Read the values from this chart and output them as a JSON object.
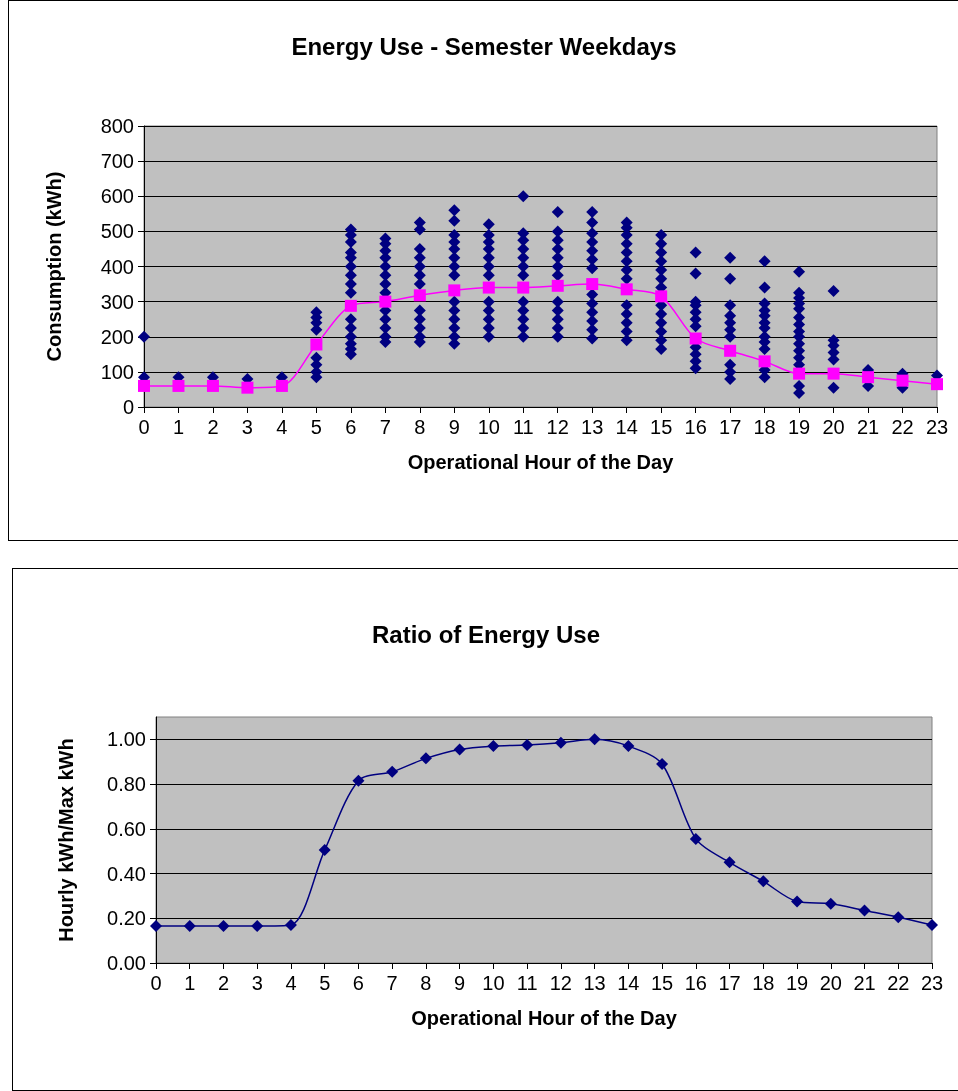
{
  "chart_data": [
    {
      "type": "scatter",
      "title": "Energy Use - Semester Weekdays",
      "xlabel": "Operational Hour of the Day",
      "ylabel": "Consumption (kWh)",
      "xlim": [
        0,
        23
      ],
      "xticks": [
        0,
        1,
        2,
        3,
        4,
        5,
        6,
        7,
        8,
        9,
        10,
        11,
        12,
        13,
        14,
        15,
        16,
        17,
        18,
        19,
        20,
        21,
        22,
        23
      ],
      "ylim": [
        0,
        800
      ],
      "yticks": [
        0,
        100,
        200,
        300,
        400,
        500,
        600,
        700,
        800
      ],
      "grid": "y",
      "series": [
        {
          "color": "#000080",
          "marker": "diamond",
          "x": [
            0,
            0,
            1,
            2,
            3,
            4,
            5,
            5,
            5,
            5,
            5,
            5,
            5,
            5,
            6,
            6,
            6,
            6,
            6,
            6,
            6,
            6,
            6,
            6,
            6,
            6,
            6,
            6,
            6,
            7,
            7,
            7,
            7,
            7,
            7,
            7,
            7,
            7,
            7,
            7,
            7,
            7,
            8,
            8,
            8,
            8,
            8,
            8,
            8,
            8,
            8,
            8,
            8,
            8,
            9,
            9,
            9,
            9,
            9,
            9,
            9,
            9,
            9,
            9,
            9,
            9,
            9,
            9,
            10,
            10,
            10,
            10,
            10,
            10,
            10,
            10,
            10,
            10,
            10,
            10,
            11,
            11,
            11,
            11,
            11,
            11,
            11,
            11,
            11,
            11,
            11,
            11,
            12,
            12,
            12,
            12,
            12,
            12,
            12,
            12,
            12,
            12,
            12,
            12,
            13,
            13,
            13,
            13,
            13,
            13,
            13,
            13,
            13,
            13,
            13,
            13,
            13,
            14,
            14,
            14,
            14,
            14,
            14,
            14,
            14,
            14,
            14,
            14,
            14,
            14,
            15,
            15,
            15,
            15,
            15,
            15,
            15,
            15,
            15,
            15,
            15,
            15,
            15,
            16,
            16,
            16,
            16,
            16,
            16,
            16,
            16,
            16,
            16,
            16,
            17,
            17,
            17,
            17,
            17,
            17,
            17,
            17,
            17,
            17,
            18,
            18,
            18,
            18,
            18,
            18,
            18,
            18,
            18,
            18,
            18,
            18,
            19,
            19,
            19,
            19,
            19,
            19,
            19,
            19,
            19,
            19,
            19,
            19,
            19,
            19,
            19,
            20,
            20,
            20,
            20,
            20,
            20,
            21,
            21,
            22,
            22,
            23
          ],
          "values": [
            85,
            200,
            85,
            85,
            80,
            85,
            85,
            100,
            120,
            140,
            220,
            240,
            255,
            270,
            150,
            165,
            180,
            200,
            225,
            250,
            325,
            350,
            375,
            400,
            425,
            440,
            470,
            490,
            505,
            185,
            200,
            225,
            250,
            275,
            325,
            350,
            375,
            400,
            425,
            445,
            465,
            480,
            185,
            200,
            225,
            250,
            275,
            350,
            375,
            400,
            425,
            450,
            505,
            525,
            180,
            200,
            225,
            250,
            275,
            300,
            375,
            400,
            425,
            450,
            470,
            490,
            530,
            560,
            200,
            225,
            250,
            275,
            300,
            375,
            400,
            425,
            450,
            470,
            490,
            520,
            200,
            225,
            250,
            275,
            300,
            375,
            400,
            425,
            450,
            475,
            495,
            600,
            200,
            225,
            250,
            275,
            300,
            375,
            400,
            425,
            450,
            475,
            500,
            555,
            195,
            220,
            245,
            270,
            295,
            320,
            395,
            420,
            445,
            470,
            495,
            525,
            555,
            190,
            215,
            240,
            265,
            290,
            365,
            390,
            415,
            440,
            465,
            490,
            510,
            525,
            165,
            190,
            215,
            240,
            265,
            290,
            340,
            365,
            390,
            415,
            440,
            465,
            490,
            110,
            130,
            150,
            170,
            230,
            250,
            270,
            290,
            300,
            380,
            440,
            80,
            100,
            120,
            200,
            220,
            240,
            260,
            290,
            365,
            425,
            85,
            105,
            165,
            185,
            200,
            225,
            240,
            260,
            275,
            295,
            340,
            415,
            40,
            60,
            120,
            140,
            160,
            180,
            200,
            215,
            235,
            255,
            280,
            295,
            310,
            325,
            385,
            55,
            135,
            155,
            175,
            190,
            330,
            60,
            105,
            55,
            95,
            90
          ]
        },
        {
          "type": "line",
          "color": "#ff00ff",
          "marker": "square",
          "x": [
            0,
            1,
            2,
            3,
            4,
            5,
            6,
            7,
            8,
            9,
            10,
            11,
            12,
            13,
            14,
            15,
            16,
            17,
            18,
            19,
            20,
            21,
            22,
            23
          ],
          "values": [
            60,
            60,
            60,
            55,
            60,
            178,
            288,
            300,
            318,
            332,
            340,
            340,
            345,
            350,
            335,
            315,
            195,
            160,
            130,
            95,
            95,
            85,
            75,
            65
          ]
        }
      ]
    },
    {
      "type": "line",
      "title": "Ratio of Energy Use",
      "xlabel": "Operational Hour of the Day",
      "ylabel": "Hourly kWh/Max kWh",
      "xlim": [
        0,
        23
      ],
      "xticks": [
        0,
        1,
        2,
        3,
        4,
        5,
        6,
        7,
        8,
        9,
        10,
        11,
        12,
        13,
        14,
        15,
        16,
        17,
        18,
        19,
        20,
        21,
        22,
        23
      ],
      "ylim": [
        0,
        1.1
      ],
      "yticks": [
        {
          "value": 0,
          "label": "0.00"
        },
        {
          "value": 0.2,
          "label": "0.20"
        },
        {
          "value": 0.4,
          "label": "0.40"
        },
        {
          "value": 0.6,
          "label": "0.60"
        },
        {
          "value": 0.8,
          "label": "0.80"
        },
        {
          "value": 1,
          "label": "1.00"
        }
      ],
      "grid": "y",
      "series": [
        {
          "color": "#000080",
          "marker": "diamond",
          "x": [
            0,
            1,
            2,
            3,
            4,
            5,
            6,
            7,
            8,
            9,
            10,
            11,
            12,
            13,
            14,
            15,
            16,
            17,
            18,
            19,
            20,
            21,
            22,
            23
          ],
          "values": [
            0.165,
            0.165,
            0.165,
            0.165,
            0.17,
            0.505,
            0.815,
            0.855,
            0.915,
            0.955,
            0.97,
            0.975,
            0.985,
            1.0,
            0.97,
            0.89,
            0.555,
            0.45,
            0.365,
            0.275,
            0.265,
            0.235,
            0.205,
            0.17
          ]
        }
      ]
    }
  ]
}
